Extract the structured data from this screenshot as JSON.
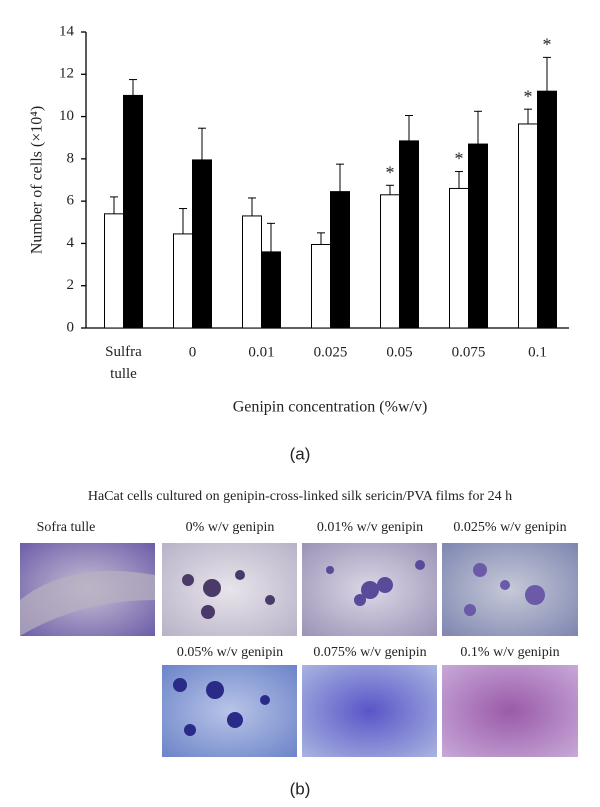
{
  "chart_data": {
    "type": "bar",
    "y_label": "Number of cells (×10⁴)",
    "x_label": "Genipin concentration (%w/v)",
    "categories": [
      "Sulfra tulle",
      "0",
      "0.01",
      "0.025",
      "0.05",
      "0.075",
      "0.1"
    ],
    "series": [
      {
        "color": "#ffffff",
        "values": [
          5.4,
          4.45,
          5.3,
          3.95,
          6.3,
          6.6,
          9.65
        ],
        "errors": [
          0.8,
          1.2,
          0.85,
          0.55,
          0.45,
          0.8,
          0.7
        ],
        "markers": [
          null,
          null,
          null,
          null,
          "*",
          "*",
          "*"
        ]
      },
      {
        "color": "#000000",
        "values": [
          11.0,
          7.95,
          3.6,
          6.45,
          8.85,
          8.7,
          11.2
        ],
        "errors": [
          0.75,
          1.5,
          1.35,
          1.3,
          1.2,
          1.55,
          1.6
        ],
        "markers": [
          null,
          null,
          null,
          null,
          null,
          null,
          "*"
        ]
      }
    ],
    "ylim": [
      0,
      14
    ],
    "yticks": [
      0,
      2,
      4,
      6,
      8,
      10,
      12,
      14
    ]
  },
  "figure": {
    "panel_a_label": "(a)",
    "caption": "HaCat cells cultured on genipin-cross-linked silk sericin/PVA films for 24 h",
    "images": [
      {
        "label": "Sofra tulle"
      },
      {
        "label": "0% w/v genipin"
      },
      {
        "label": "0.01% w/v genipin"
      },
      {
        "label": "0.025% w/v genipin"
      },
      {
        "label": "0.05% w/v genipin"
      },
      {
        "label": "0.075% w/v genipin"
      },
      {
        "label": "0.1% w/v genipin"
      }
    ],
    "panel_b_label": "(b)"
  }
}
